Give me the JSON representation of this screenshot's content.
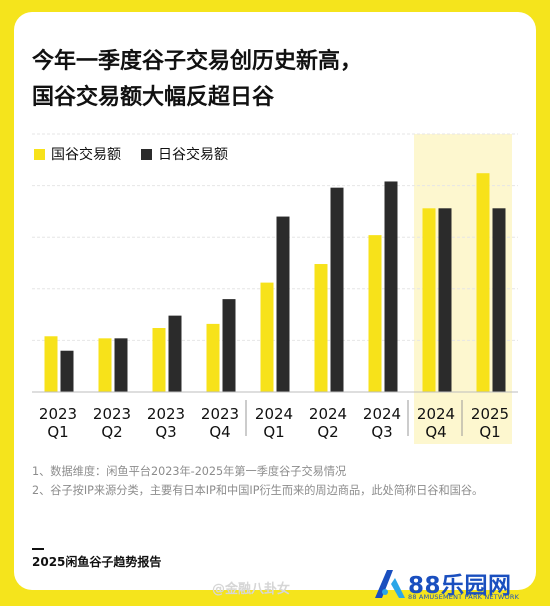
{
  "title_lines": [
    "今年一季度谷子交易创历史新高，",
    "国谷交易额大幅反超日谷"
  ],
  "colors": {
    "frame": "#f5e41c",
    "series_a": "#f7e21a",
    "series_b": "#2b2b2b",
    "highlight": "#fdf7cf",
    "grid": "#e6e6e6"
  },
  "chart_data": {
    "type": "bar",
    "categories": [
      [
        "2023",
        "Q1"
      ],
      [
        "2023",
        "Q2"
      ],
      [
        "2023",
        "Q3"
      ],
      [
        "2023",
        "Q4"
      ],
      [
        "2024",
        "Q1"
      ],
      [
        "2024",
        "Q2"
      ],
      [
        "2024",
        "Q3"
      ],
      [
        "2024",
        "Q4"
      ],
      [
        "2025",
        "Q1"
      ]
    ],
    "series": [
      {
        "name": "国谷交易额",
        "values": [
          27,
          26,
          31,
          33,
          53,
          62,
          76,
          89,
          106
        ]
      },
      {
        "name": "日谷交易额",
        "values": [
          20,
          26,
          37,
          45,
          85,
          99,
          102,
          89,
          89
        ]
      }
    ],
    "ylim": [
      0,
      125
    ],
    "highlight_categories": [
      7,
      8
    ],
    "legend_position": "top-left",
    "grid": true
  },
  "notes": [
    "1、数据维度：闲鱼平台2023年-2025年第一季度谷子交易情况",
    "2、谷子按IP来源分类，主要有日本IP和中国IP衍生而来的周边商品，此处简称日谷和国谷。"
  ],
  "footer": "2025闲鱼谷子趋势报告",
  "watermark": "@金融八卦女",
  "brand": {
    "name": "88乐园网",
    "sub": "88 AMUSEMENT PARK NETWORK"
  }
}
